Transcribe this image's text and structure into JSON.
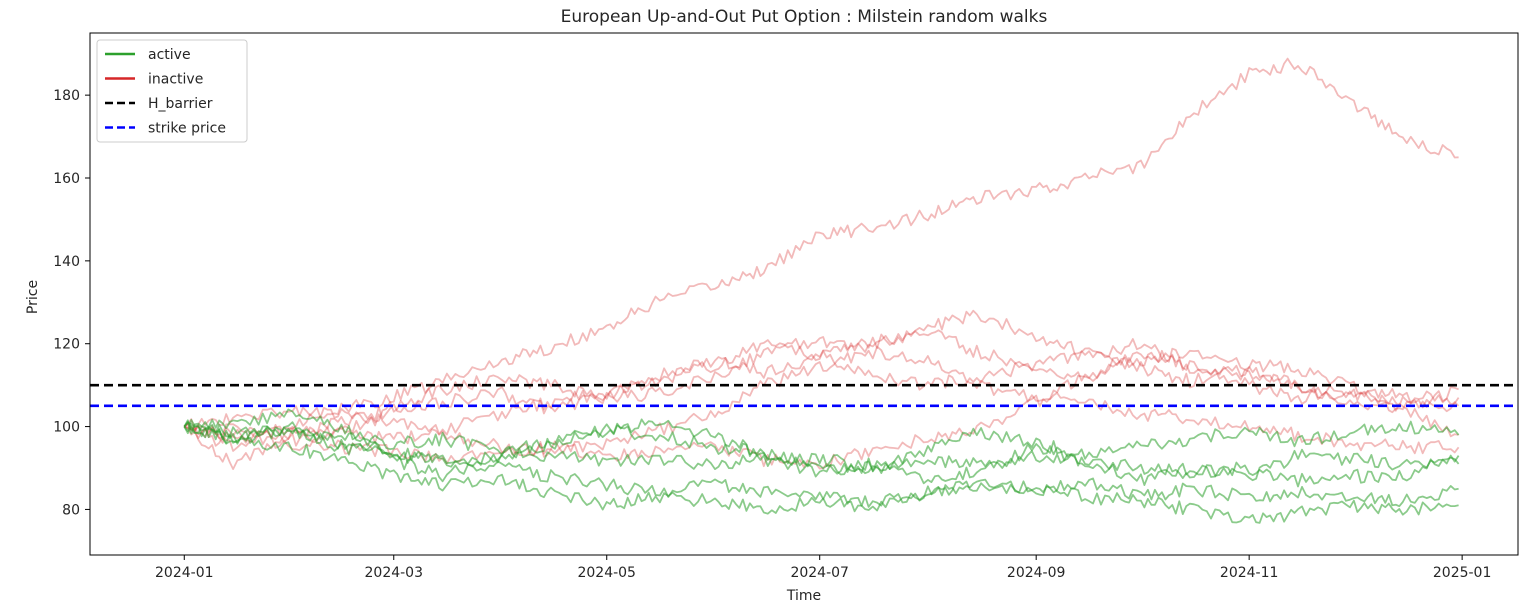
{
  "chart_data": {
    "type": "line",
    "title": "European Up-and-Out Put Option : Milstein random walks",
    "xlabel": "Time",
    "ylabel": "Price",
    "xlim": [
      "2023-12-05",
      "2025-01-17"
    ],
    "ylim": [
      69,
      195
    ],
    "x_ticks": [
      "2024-01",
      "2024-03",
      "2024-05",
      "2024-07",
      "2024-09",
      "2024-11",
      "2025-01"
    ],
    "y_ticks": [
      80,
      100,
      120,
      140,
      160,
      180
    ],
    "grid": false,
    "legend_position": "top-left",
    "legend": [
      {
        "label": "active",
        "color": "#2ca02c",
        "style": "solid"
      },
      {
        "label": "inactive",
        "color": "#d62728",
        "style": "solid"
      },
      {
        "label": "H_barrier",
        "color": "#000000",
        "style": "dashed"
      },
      {
        "label": "strike price",
        "color": "#0000ff",
        "style": "dashed"
      }
    ],
    "hlines": [
      {
        "name": "H_barrier",
        "y": 110,
        "color": "#000000"
      },
      {
        "name": "strike price",
        "y": 105,
        "color": "#0000ff"
      }
    ],
    "x": [
      "2024-01-01",
      "2024-01-15",
      "2024-02-01",
      "2024-02-15",
      "2024-03-01",
      "2024-03-15",
      "2024-04-01",
      "2024-04-15",
      "2024-05-01",
      "2024-05-15",
      "2024-06-01",
      "2024-06-15",
      "2024-07-01",
      "2024-07-15",
      "2024-08-01",
      "2024-08-15",
      "2024-09-01",
      "2024-09-15",
      "2024-10-01",
      "2024-10-15",
      "2024-11-01",
      "2024-11-15",
      "2024-12-01",
      "2024-12-15",
      "2024-12-31"
    ],
    "series": [
      {
        "status": "inactive",
        "values": [
          100,
          95,
          101,
          104,
          107,
          111,
          116,
          119,
          124,
          130,
          134,
          138,
          146,
          148,
          151,
          155,
          157,
          160,
          163,
          175,
          185,
          188,
          178,
          170,
          165
        ]
      },
      {
        "status": "inactive",
        "values": [
          100,
          97,
          100,
          98,
          105,
          109,
          112,
          110,
          107,
          108,
          112,
          118,
          121,
          119,
          124,
          127,
          122,
          118,
          114,
          111,
          114,
          110,
          108,
          104,
          109
        ]
      },
      {
        "status": "inactive",
        "values": [
          100,
          91,
          98,
          101,
          104,
          106,
          108,
          104,
          108,
          112,
          116,
          113,
          117,
          120,
          123,
          118,
          114,
          112,
          116,
          118,
          115,
          114,
          110,
          107,
          107
        ]
      },
      {
        "status": "inactive",
        "values": [
          100,
          102,
          104,
          103,
          101,
          99,
          103,
          106,
          108,
          111,
          115,
          120,
          117,
          113,
          110,
          112,
          115,
          117,
          120,
          114,
          112,
          110,
          106,
          104,
          98
        ]
      },
      {
        "status": "inactive",
        "values": [
          100,
          99,
          97,
          95,
          94,
          92,
          94,
          95,
          93,
          94,
          95,
          92,
          91,
          94,
          97,
          99,
          106,
          112,
          118,
          115,
          110,
          107,
          108,
          106,
          105
        ]
      },
      {
        "status": "inactive",
        "values": [
          100,
          98,
          95,
          99,
          97,
          98,
          95,
          94,
          96,
          99,
          103,
          110,
          114,
          118,
          116,
          110,
          107,
          106,
          103,
          102,
          100,
          98,
          96,
          95,
          95
        ]
      },
      {
        "status": "active",
        "values": [
          100,
          97,
          100,
          95,
          93,
          92,
          90,
          88,
          86,
          84,
          86,
          84,
          83,
          82,
          84,
          86,
          85,
          83,
          82,
          80,
          77,
          79,
          81,
          80,
          81
        ]
      },
      {
        "status": "active",
        "values": [
          100,
          97,
          99,
          96,
          94,
          91,
          93,
          96,
          99,
          98,
          95,
          94,
          90,
          89,
          94,
          99,
          96,
          93,
          95,
          97,
          99,
          96,
          99,
          100,
          98
        ]
      },
      {
        "status": "active",
        "values": [
          100,
          99,
          98,
          97,
          96,
          97,
          94,
          93,
          92,
          92,
          91,
          92,
          89,
          90,
          92,
          91,
          93,
          92,
          90,
          89,
          90,
          87,
          88,
          88,
          93
        ]
      },
      {
        "status": "active",
        "values": [
          100,
          97,
          95,
          92,
          88,
          86,
          87,
          84,
          81,
          83,
          82,
          80,
          82,
          80,
          84,
          86,
          84,
          87,
          83,
          85,
          83,
          84,
          83,
          82,
          85
        ]
      },
      {
        "status": "active",
        "values": [
          100,
          101,
          103,
          100,
          92,
          88,
          93,
          97,
          99,
          101,
          98,
          93,
          92,
          91,
          87,
          89,
          95,
          92,
          87,
          90,
          88,
          93,
          92,
          91,
          91
        ]
      }
    ]
  }
}
